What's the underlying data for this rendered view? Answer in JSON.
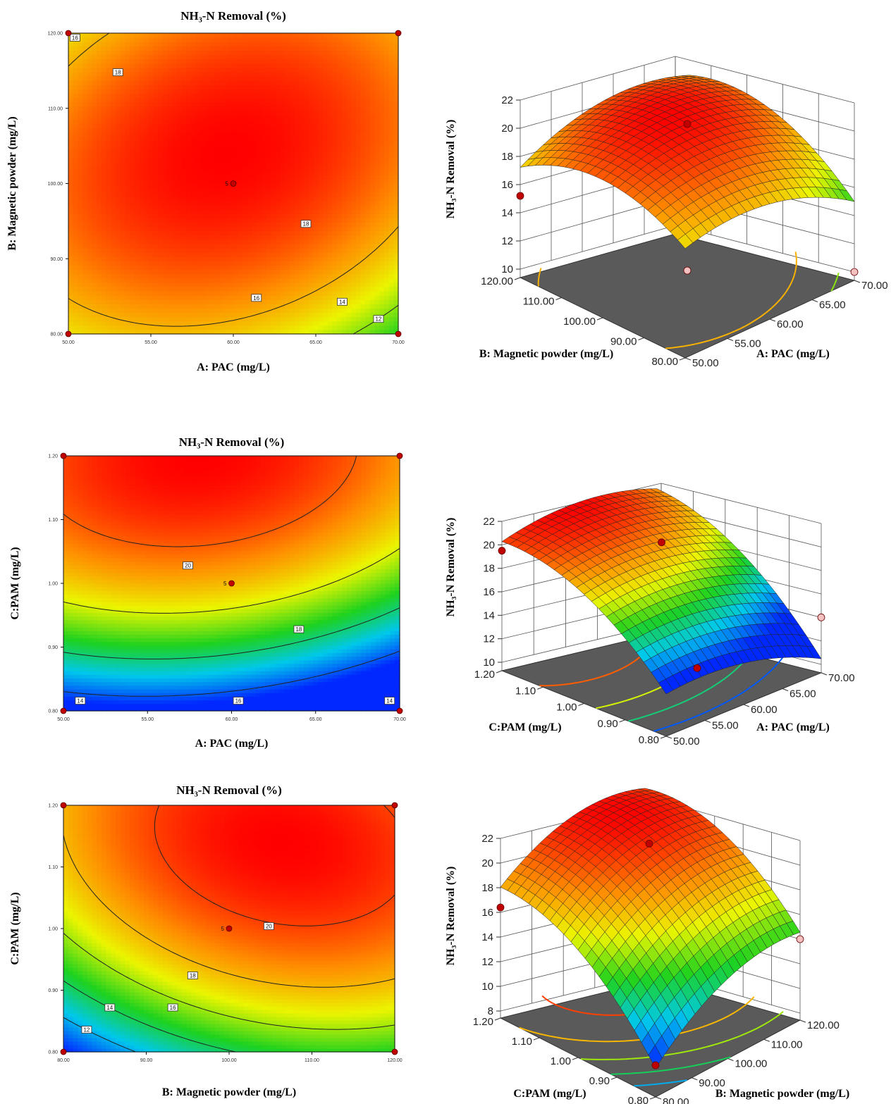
{
  "panels": [
    {
      "contour": {
        "title": "NH₃-N Removal (%)",
        "xlabel": "A: PAC (mg/L)",
        "ylabel": "B: Magnetic powder (mg/L)",
        "xticks": [
          "50.00",
          "55.00",
          "60.00",
          "65.00",
          "70.00"
        ],
        "yticks": [
          "80.00",
          "90.00",
          "100.00",
          "110.00",
          "120.00"
        ],
        "contour_labels": [
          "16",
          "18",
          "18",
          "16",
          "14",
          "12"
        ],
        "center_label": "5"
      },
      "surface": {
        "zlabel": "NH₃-N Removal (%)",
        "zticks": [
          "10",
          "12",
          "14",
          "16",
          "18",
          "20",
          "22"
        ],
        "left_label": "B: Magnetic powder (mg/L)",
        "left_ticks": [
          "80.00",
          "90.00",
          "100.00",
          "110.00",
          "120.00"
        ],
        "right_label": "A: PAC (mg/L)",
        "right_ticks": [
          "50.00",
          "55.00",
          "60.00",
          "65.00",
          "70.00"
        ]
      }
    },
    {
      "contour": {
        "title": "NH₃-N Removal (%)",
        "xlabel": "A: PAC (mg/L)",
        "ylabel": "C:PAM (mg/L)",
        "xticks": [
          "50.00",
          "55.00",
          "60.00",
          "65.00",
          "70.00"
        ],
        "yticks": [
          "0.80",
          "0.90",
          "1.00",
          "1.10",
          "1.20"
        ],
        "contour_labels": [
          "20",
          "18",
          "16",
          "14",
          "14"
        ],
        "center_label": "5"
      },
      "surface": {
        "zlabel": "NH₃-N Removal (%)",
        "zticks": [
          "10",
          "12",
          "14",
          "16",
          "18",
          "20",
          "22"
        ],
        "left_label": "C:PAM (mg/L)",
        "left_ticks": [
          "0.80",
          "0.90",
          "1.00",
          "1.10",
          "1.20"
        ],
        "right_label": "A: PAC (mg/L)",
        "right_ticks": [
          "50.00",
          "55.00",
          "60.00",
          "65.00",
          "70.00"
        ]
      }
    },
    {
      "contour": {
        "title": "NH₃-N Removal (%)",
        "xlabel": "B: Magnetic powder (mg/L)",
        "ylabel": "C:PAM (mg/L)",
        "xticks": [
          "80.00",
          "90.00",
          "100.00",
          "110.00",
          "120.00"
        ],
        "yticks": [
          "0.80",
          "0.90",
          "1.00",
          "1.10",
          "1.20"
        ],
        "contour_labels": [
          "20",
          "18",
          "16",
          "14",
          "12"
        ],
        "center_label": "5"
      },
      "surface": {
        "zlabel": "NH₃-N Removal (%)",
        "zticks": [
          "8",
          "10",
          "12",
          "14",
          "16",
          "18",
          "20",
          "22"
        ],
        "left_label": "C:PAM (mg/L)",
        "left_ticks": [
          "0.80",
          "0.90",
          "1.00",
          "1.10",
          "1.20"
        ],
        "right_label": "B: Magnetic powder (mg/L)",
        "right_ticks": [
          "80.00",
          "90.00",
          "100.00",
          "110.00",
          "120.00"
        ]
      }
    }
  ],
  "chart_data": [
    {
      "type": "heatmap",
      "title": "NH₃-N Removal (%)",
      "xlabel": "A: PAC (mg/L)",
      "ylabel": "B: Magnetic powder (mg/L)",
      "xlim": [
        50,
        70
      ],
      "ylim": [
        80,
        120
      ],
      "contour_levels": [
        12,
        14,
        16,
        18
      ],
      "design_points": [
        {
          "x": 50,
          "y": 80
        },
        {
          "x": 50,
          "y": 120
        },
        {
          "x": 70,
          "y": 80
        },
        {
          "x": 70,
          "y": 120
        },
        {
          "x": 60,
          "y": 100,
          "n": 5
        }
      ],
      "response_range": [
        11,
        20.5
      ]
    },
    {
      "type": "surface",
      "zlabel": "NH₃-N Removal (%)",
      "xlabel": "A: PAC (mg/L)",
      "ylabel": "B: Magnetic powder (mg/L)",
      "xlim": [
        50,
        70
      ],
      "ylim": [
        80,
        120
      ],
      "zlim": [
        10,
        22
      ]
    },
    {
      "type": "heatmap",
      "title": "NH₃-N Removal (%)",
      "xlabel": "A: PAC (mg/L)",
      "ylabel": "C:PAM (mg/L)",
      "xlim": [
        50,
        70
      ],
      "ylim": [
        0.8,
        1.2
      ],
      "contour_levels": [
        14,
        16,
        18,
        20
      ],
      "design_points": [
        {
          "x": 50,
          "y": 0.8
        },
        {
          "x": 50,
          "y": 1.2
        },
        {
          "x": 70,
          "y": 0.8
        },
        {
          "x": 70,
          "y": 1.2
        },
        {
          "x": 60,
          "y": 1.0,
          "n": 5
        }
      ],
      "response_range": [
        13.5,
        21
      ]
    },
    {
      "type": "surface",
      "zlabel": "NH₃-N Removal (%)",
      "xlabel": "A: PAC (mg/L)",
      "ylabel": "C:PAM (mg/L)",
      "xlim": [
        50,
        70
      ],
      "ylim": [
        0.8,
        1.2
      ],
      "zlim": [
        10,
        22
      ]
    },
    {
      "type": "heatmap",
      "title": "NH₃-N Removal (%)",
      "xlabel": "B: Magnetic powder (mg/L)",
      "ylabel": "C:PAM (mg/L)",
      "xlim": [
        80,
        120
      ],
      "ylim": [
        0.8,
        1.2
      ],
      "contour_levels": [
        12,
        14,
        16,
        18,
        20
      ],
      "design_points": [
        {
          "x": 80,
          "y": 0.8
        },
        {
          "x": 80,
          "y": 1.2
        },
        {
          "x": 120,
          "y": 0.8
        },
        {
          "x": 120,
          "y": 1.2
        },
        {
          "x": 100,
          "y": 1.0,
          "n": 5
        }
      ],
      "response_range": [
        10,
        21
      ]
    },
    {
      "type": "surface",
      "zlabel": "NH₃-N Removal (%)",
      "xlabel": "B: Magnetic powder (mg/L)",
      "ylabel": "C:PAM (mg/L)",
      "xlim": [
        80,
        120
      ],
      "ylim": [
        0.8,
        1.2
      ],
      "zlim": [
        8,
        22
      ]
    }
  ]
}
